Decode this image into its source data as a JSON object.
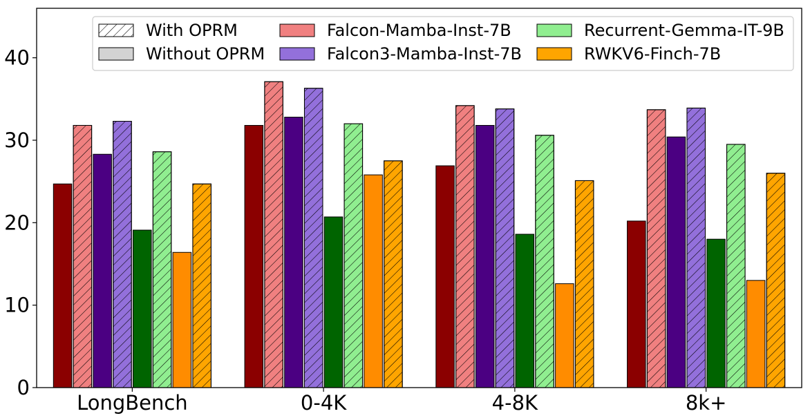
{
  "chart_data": {
    "type": "bar",
    "categories": [
      "LongBench",
      "0-4K",
      "4-8K",
      "8k+"
    ],
    "ylim": [
      0,
      46
    ],
    "yticks": [
      0,
      10,
      20,
      30,
      40
    ],
    "grid": false,
    "legend_position": "top-right",
    "legend": {
      "hatch_keys": [
        {
          "label": "With OPRM",
          "hatched": true
        },
        {
          "label": "Without OPRM",
          "hatched": false
        }
      ]
    },
    "series": [
      {
        "name": "Falcon-Mamba-Inst-7B",
        "oprm": false,
        "color": "#8b0000",
        "values": [
          24.7,
          31.8,
          26.9,
          20.2
        ]
      },
      {
        "name": "Falcon-Mamba-Inst-7B",
        "oprm": true,
        "color": "#f08080",
        "values": [
          31.8,
          37.1,
          34.2,
          33.7
        ]
      },
      {
        "name": "Falcon3-Mamba-Inst-7B",
        "oprm": false,
        "color": "#4b0082",
        "values": [
          28.3,
          32.8,
          31.8,
          30.4
        ]
      },
      {
        "name": "Falcon3-Mamba-Inst-7B",
        "oprm": true,
        "color": "#9370db",
        "values": [
          32.3,
          36.3,
          33.8,
          33.9
        ]
      },
      {
        "name": "Recurrent-Gemma-IT-9B",
        "oprm": false,
        "color": "#006400",
        "values": [
          19.1,
          20.7,
          18.6,
          18.0
        ]
      },
      {
        "name": "Recurrent-Gemma-IT-9B",
        "oprm": true,
        "color": "#90ee90",
        "values": [
          28.6,
          32.0,
          30.6,
          29.5
        ]
      },
      {
        "name": "RWKV6-Finch-7B",
        "oprm": false,
        "color": "#ff8c00",
        "values": [
          16.4,
          25.8,
          12.6,
          13.0
        ]
      },
      {
        "name": "RWKV6-Finch-7B",
        "oprm": true,
        "color": "#ffa500",
        "values": [
          24.7,
          27.5,
          25.1,
          26.0
        ]
      }
    ]
  }
}
